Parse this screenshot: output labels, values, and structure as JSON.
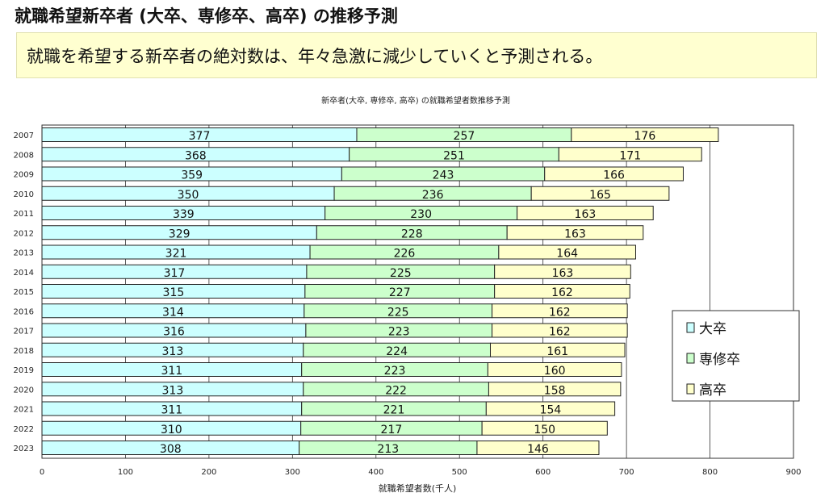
{
  "header": {
    "title": "就職希望新卒者 (大卒、専修卒、高卒) の推移予測"
  },
  "summary": "就職を希望する新卒者の絶対数は、年々急激に減少していくと予測される。",
  "chart_data": {
    "type": "bar",
    "orientation": "horizontal",
    "stacked": true,
    "title": "新卒者(大卒, 専修卒, 高卒) の就職希望者数推移予測",
    "xlabel": "就職希望者数(千人)",
    "ylabel": "",
    "xlim": [
      0,
      900
    ],
    "xticks": [
      0,
      100,
      200,
      300,
      400,
      500,
      600,
      700,
      800,
      900
    ],
    "grid": true,
    "legend": "right",
    "categories": [
      "2007",
      "2008",
      "2009",
      "2010",
      "2011",
      "2012",
      "2013",
      "2014",
      "2015",
      "2016",
      "2017",
      "2018",
      "2019",
      "2020",
      "2021",
      "2022",
      "2023"
    ],
    "series": [
      {
        "name": "大卒",
        "color": "#ccffff",
        "values": [
          377,
          368,
          359,
          350,
          339,
          329,
          321,
          317,
          315,
          314,
          316,
          313,
          311,
          313,
          311,
          310,
          308
        ]
      },
      {
        "name": "専修卒",
        "color": "#ccffcc",
        "values": [
          257,
          251,
          243,
          236,
          230,
          228,
          226,
          225,
          227,
          225,
          223,
          224,
          223,
          222,
          221,
          217,
          213
        ]
      },
      {
        "name": "高卒",
        "color": "#ffffcc",
        "values": [
          176,
          171,
          166,
          165,
          163,
          163,
          164,
          163,
          162,
          162,
          162,
          161,
          160,
          158,
          154,
          150,
          146
        ]
      }
    ]
  }
}
